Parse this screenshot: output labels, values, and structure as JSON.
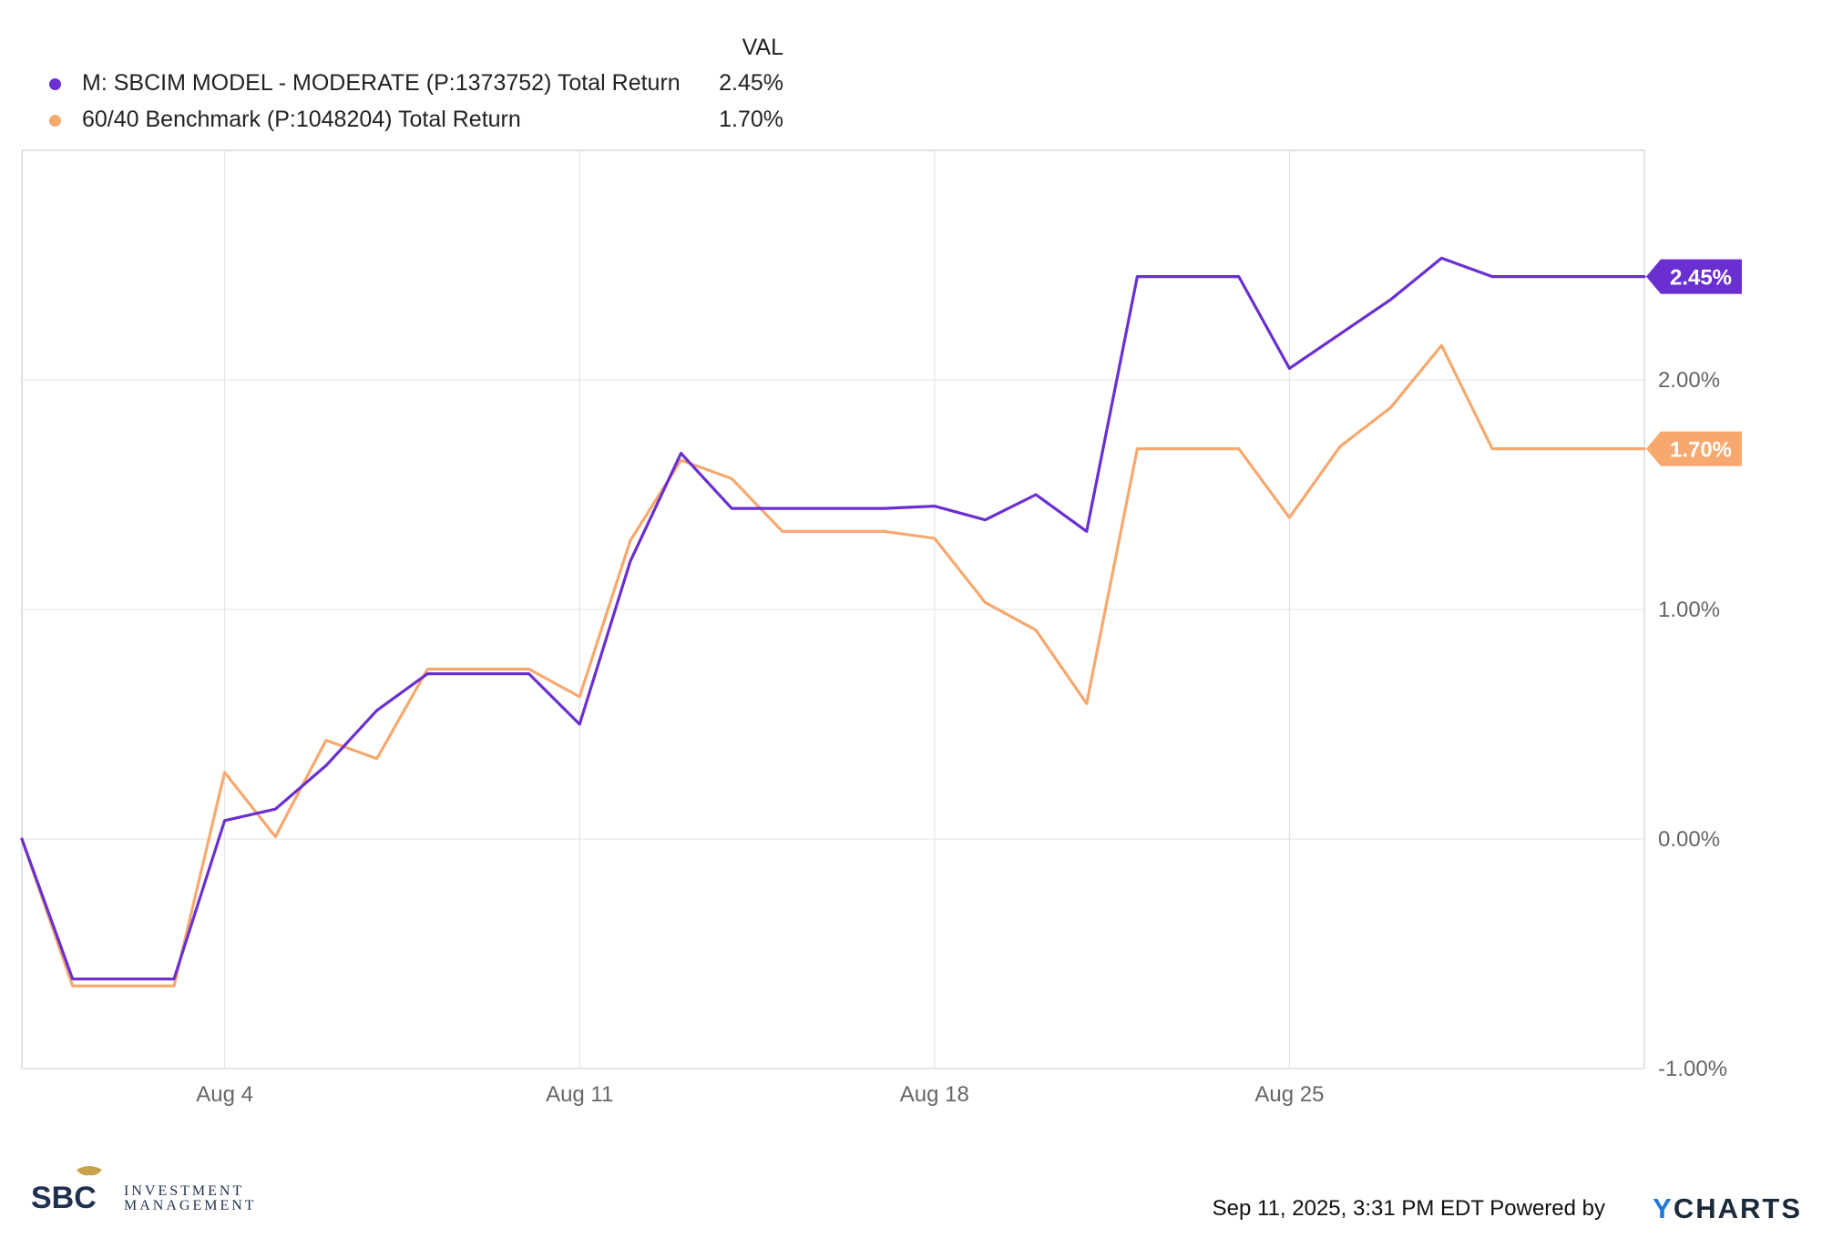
{
  "legend": {
    "header": "VAL",
    "items": [
      {
        "label": "M: SBCIM MODEL - MODERATE (P:1373752) Total Return",
        "value": "2.45%",
        "color": "#6a2fd0"
      },
      {
        "label": "60/40 Benchmark (P:1048204) Total Return",
        "value": "1.70%",
        "color": "#f7a86e"
      }
    ]
  },
  "chart_data": {
    "type": "line",
    "x": [
      "Jul 31",
      "Aug 1",
      "Aug 2",
      "Aug 3",
      "Aug 4",
      "Aug 5",
      "Aug 6",
      "Aug 7",
      "Aug 8",
      "Aug 9",
      "Aug 10",
      "Aug 11",
      "Aug 12",
      "Aug 13",
      "Aug 14",
      "Aug 15",
      "Aug 16",
      "Aug 17",
      "Aug 18",
      "Aug 19",
      "Aug 20",
      "Aug 21",
      "Aug 22",
      "Aug 23",
      "Aug 24",
      "Aug 25",
      "Aug 26",
      "Aug 27",
      "Aug 28",
      "Aug 29",
      "Aug 30",
      "Aug 31",
      "Sep 1"
    ],
    "series": [
      {
        "name": "M: SBCIM MODEL - MODERATE (P:1373752) Total Return",
        "color": "#6a2fd0",
        "values": [
          0.0,
          -0.61,
          -0.61,
          -0.61,
          0.08,
          0.13,
          0.32,
          0.56,
          0.72,
          0.72,
          0.72,
          0.5,
          1.21,
          1.68,
          1.44,
          1.44,
          1.44,
          1.44,
          1.45,
          1.39,
          1.5,
          1.34,
          2.45,
          2.45,
          2.45,
          2.05,
          2.2,
          2.35,
          2.53,
          2.45,
          2.45,
          2.45,
          2.45
        ]
      },
      {
        "name": "60/40 Benchmark (P:1048204) Total Return",
        "color": "#f7a86e",
        "values": [
          0.0,
          -0.64,
          -0.64,
          -0.64,
          0.29,
          0.01,
          0.43,
          0.35,
          0.74,
          0.74,
          0.74,
          0.62,
          1.3,
          1.65,
          1.57,
          1.34,
          1.34,
          1.34,
          1.31,
          1.03,
          0.91,
          0.59,
          1.7,
          1.7,
          1.7,
          1.4,
          1.71,
          1.88,
          2.15,
          1.7,
          1.7,
          1.7,
          1.7
        ]
      }
    ],
    "x_ticks": [
      "Aug 4",
      "Aug 11",
      "Aug 18",
      "Aug 25"
    ],
    "y_ticks": [
      "2.00%",
      "1.00%",
      "0.00%",
      "-1.00%"
    ],
    "ylim": [
      -1.0,
      3.0
    ],
    "grid": true,
    "legend_position": "top-left",
    "end_labels": [
      "2.45%",
      "1.70%"
    ]
  },
  "footer": {
    "timestamp": "Sep 11, 2025, 3:31 PM EDT Powered by",
    "brand_y": "Y",
    "brand_rest": "CHARTS"
  },
  "logo": {
    "brand": "SBC",
    "line1": "INVESTMENT",
    "line2": "MANAGEMENT"
  }
}
